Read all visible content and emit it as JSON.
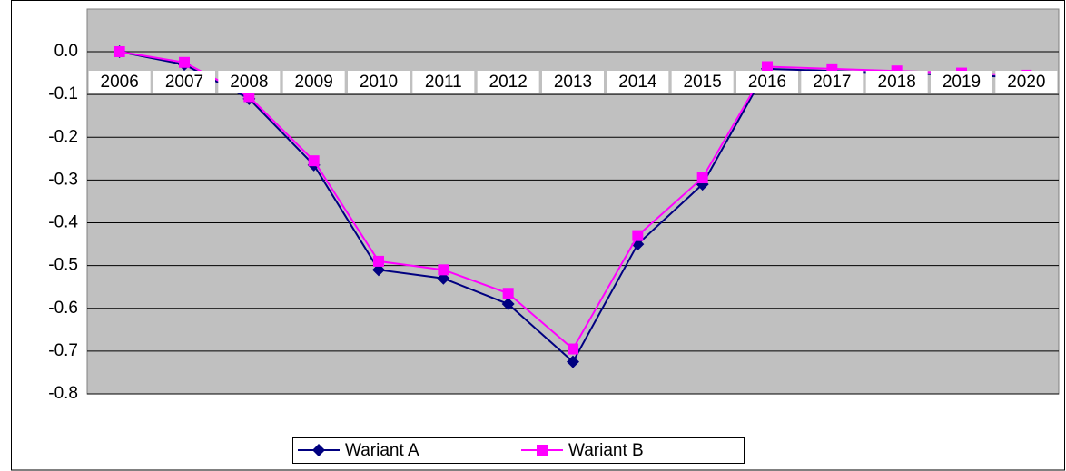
{
  "chart_data": {
    "type": "line",
    "categories": [
      "2006",
      "2007",
      "2008",
      "2009",
      "2010",
      "2011",
      "2012",
      "2013",
      "2014",
      "2015",
      "2016",
      "2017",
      "2018",
      "2019",
      "2020"
    ],
    "series": [
      {
        "name": "Wariant A",
        "color": "#000080",
        "marker": "diamond",
        "values": [
          0,
          -0.03,
          -0.11,
          -0.265,
          -0.51,
          -0.53,
          -0.59,
          -0.725,
          -0.45,
          -0.31,
          -0.04,
          -0.045,
          -0.05,
          -0.055,
          -0.06
        ]
      },
      {
        "name": "Wariant B",
        "color": "#ff00ff",
        "marker": "square",
        "values": [
          0,
          -0.025,
          -0.105,
          -0.255,
          -0.49,
          -0.51,
          -0.565,
          -0.695,
          -0.43,
          -0.295,
          -0.035,
          -0.04,
          -0.045,
          -0.05,
          -0.055
        ]
      }
    ],
    "ylim": [
      -0.8,
      0
    ],
    "yticks": [
      {
        "value": 0,
        "label": "0.0"
      },
      -0.1,
      -0.2,
      -0.3,
      -0.4,
      -0.5,
      -0.6,
      -0.7,
      -0.8
    ],
    "grid": true,
    "legend": "bottom"
  }
}
